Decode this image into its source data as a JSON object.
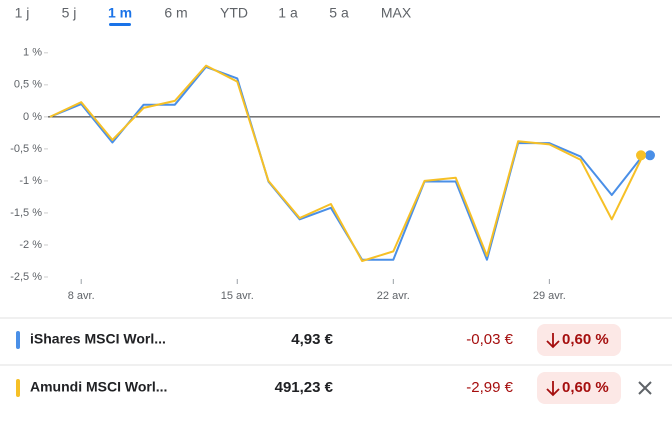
{
  "tabs": [
    "1 j",
    "5 j",
    "1 m",
    "6 m",
    "YTD",
    "1 a",
    "5 a",
    "MAX"
  ],
  "active_tab": 2,
  "chart_data": {
    "type": "line",
    "categories": [
      null,
      "8 avr.",
      null,
      null,
      null,
      null,
      "15 avr.",
      null,
      null,
      null,
      null,
      "22 avr.",
      null,
      null,
      null,
      null,
      "29 avr.",
      null,
      null,
      null
    ],
    "series": [
      {
        "name": "iShares MSCI Worl...",
        "color": "#4a8fe7",
        "values": [
          0,
          0.2,
          -0.4,
          0.19,
          0.19,
          0.78,
          0.6,
          -1.01,
          -1.6,
          -1.42,
          -2.23,
          -2.23,
          -1.01,
          -1.01,
          -2.23,
          -0.41,
          -0.41,
          -0.62,
          -1.22,
          -0.6
        ]
      },
      {
        "name": "Amundi MSCI Worl...",
        "color": "#f6c026",
        "values": [
          0,
          0.23,
          -0.36,
          0.14,
          0.25,
          0.8,
          0.55,
          -1.0,
          -1.58,
          -1.36,
          -2.25,
          -2.1,
          -1.0,
          -0.95,
          -2.17,
          -0.38,
          -0.43,
          -0.67,
          -1.6,
          -0.6
        ]
      }
    ],
    "ylim": [
      -2.5,
      1.2
    ],
    "yticks": [
      {
        "value": -2.5,
        "label": "-2,5 %"
      },
      {
        "value": -2,
        "label": "-2 %"
      },
      {
        "value": -1.5,
        "label": "-1,5 %"
      },
      {
        "value": -1,
        "label": "-1 %"
      },
      {
        "value": -0.5,
        "label": "-0,5 %"
      },
      {
        "value": 0,
        "label": "0 %"
      },
      {
        "value": 0.5,
        "label": "0,5 %"
      },
      {
        "value": 1,
        "label": "1 %"
      }
    ],
    "grid": false
  },
  "rows": [
    {
      "price": "4,93 €",
      "change": "-0,03 €",
      "percent": "0,60 %"
    },
    {
      "price": "491,23 €",
      "change": "-2,99 €",
      "percent": "0,60 %"
    }
  ]
}
